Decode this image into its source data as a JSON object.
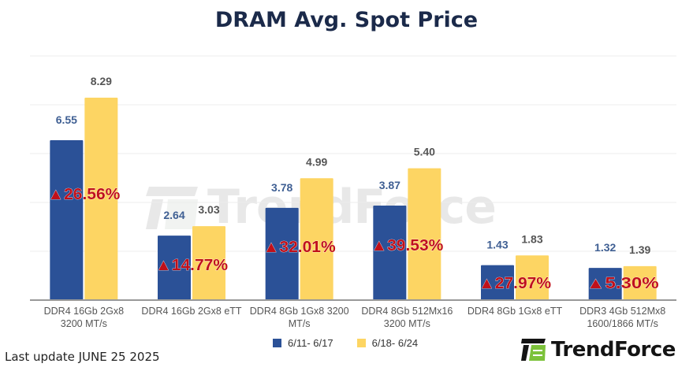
{
  "chart_data": {
    "type": "bar",
    "title": "DRAM Avg. Spot Price",
    "xlabel": "",
    "ylabel": "",
    "ylim": [
      0,
      10
    ],
    "grid": true,
    "legend_position": "bottom",
    "categories": [
      [
        "DDR4 16Gb 2Gx8",
        "3200 MT/s"
      ],
      [
        "DDR4 16Gb 2Gx8 eTT"
      ],
      [
        "DDR4 8Gb 1Gx8 3200",
        "MT/s"
      ],
      [
        "DDR4 8Gb 512Mx16",
        "3200 MT/s"
      ],
      [
        "DDR4 8Gb 1Gx8 eTT"
      ],
      [
        "DDR3 4Gb 512Mx8",
        "1600/1866  MT/s"
      ]
    ],
    "series": [
      {
        "name": "6/11- 6/17",
        "color": "#2b5197",
        "label_color": "#3f5f93",
        "values": [
          6.55,
          2.64,
          3.78,
          3.87,
          1.43,
          1.32
        ],
        "labels": [
          "6.55",
          "2.64",
          "3.78",
          "3.87",
          "1.43",
          "1.32"
        ]
      },
      {
        "name": "6/18- 6/24",
        "color": "#fdd563",
        "label_color": "#555555",
        "values": [
          8.29,
          3.03,
          4.99,
          5.4,
          1.83,
          1.39
        ],
        "labels": [
          "8.29",
          "3.03",
          "4.99",
          "5.40",
          "1.83",
          "1.39"
        ]
      }
    ],
    "annotations": [
      "▲26.56%",
      "▲14.77%",
      "▲32.01%",
      "▲39.53%",
      "▲27.97%",
      "▲5.30%"
    ],
    "annotation_color": "#c0101a"
  },
  "footer": {
    "last_update": "Last update JUNE 25  2025"
  },
  "logo": {
    "text": "TrendForce",
    "icon": "trendforce-logo-icon"
  },
  "watermark": {
    "text": "TrendForce"
  }
}
